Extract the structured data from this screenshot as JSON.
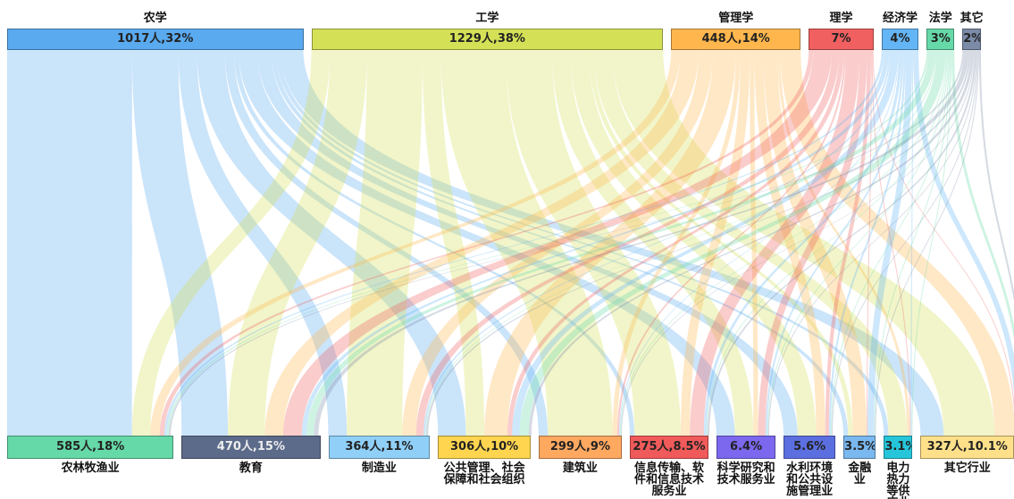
{
  "chart_data": {
    "type": "sankey",
    "sources": [
      {
        "name": "农学",
        "value": 32,
        "value_label": "1017人,32%",
        "color": "#5aaaf0"
      },
      {
        "name": "工学",
        "value": 38,
        "value_label": "1229人,38%",
        "color": "#d4e157"
      },
      {
        "name": "管理学",
        "value": 14,
        "value_label": "448人,14%",
        "color": "#ffb74d"
      },
      {
        "name": "理学",
        "value": 7,
        "value_label": "7%",
        "color": "#f06060"
      },
      {
        "name": "经济学",
        "value": 4,
        "value_label": "4%",
        "color": "#64b5f6"
      },
      {
        "name": "法学",
        "value": 3,
        "value_label": "3%",
        "color": "#66d9a8"
      },
      {
        "name": "其它",
        "value": 2,
        "value_label": "2%",
        "color": "#7b8ba8"
      }
    ],
    "targets": [
      {
        "name": "农林牧渔业",
        "value": 18,
        "value_label": "585人,18%",
        "color": "#66d9a8"
      },
      {
        "name": "教育",
        "value": 15,
        "value_label": "470人,15%",
        "color": "#5c6b8a"
      },
      {
        "name": "制造业",
        "value": 11,
        "value_label": "364人,11%",
        "color": "#90d0f8"
      },
      {
        "name": "公共管理、社会保障和社会组织",
        "value": 10,
        "value_label": "306人,10%",
        "color": "#ffd54f"
      },
      {
        "name": "建筑业",
        "value": 9,
        "value_label": "299人,9%",
        "color": "#ffa860"
      },
      {
        "name": "信息传输、软件和信息技术服务业",
        "value": 8.5,
        "value_label": "275人,8.5%",
        "color": "#f05a5a"
      },
      {
        "name": "科学研究和技术服务业",
        "value": 6.4,
        "value_label": "6.4%",
        "color": "#7b68ee"
      },
      {
        "name": "水利环境和公共设施管理业",
        "value": 5.6,
        "value_label": "5.6%",
        "color": "#5c6fe0"
      },
      {
        "name": "金融业",
        "value": 3.5,
        "value_label": "3.5%",
        "color": "#7ab8f0"
      },
      {
        "name": "电力热力等供应业",
        "value": 3.1,
        "value_label": "3.1%",
        "color": "#26c6da"
      },
      {
        "name": "其它行业",
        "value": 10.1,
        "value_label": "327人,10.1%",
        "color": "#ffe08a"
      }
    ],
    "flows": [
      [
        13.5,
        5,
        2,
        3,
        1,
        0.5,
        2,
        1.5,
        0.5,
        0.5,
        2.5
      ],
      [
        2,
        4,
        6,
        2,
        7,
        5,
        2,
        2,
        0.5,
        2,
        5.5
      ],
      [
        1,
        2,
        1.5,
        2.5,
        0.5,
        1,
        0.5,
        1,
        1.5,
        0.3,
        2.2
      ],
      [
        0.5,
        2,
        0.8,
        0.5,
        0.2,
        1.5,
        0.8,
        0.4,
        0.1,
        0.1,
        0.1
      ],
      [
        0.3,
        0.5,
        0.2,
        0.8,
        0.1,
        0.3,
        0.2,
        0.2,
        0.7,
        0.1,
        0.6
      ],
      [
        0.2,
        0.8,
        0.1,
        1,
        0.1,
        0.1,
        0.1,
        0.1,
        0.1,
        0.1,
        0.3
      ],
      [
        0.2,
        0.5,
        0.2,
        0.3,
        0.1,
        0.2,
        0.1,
        0.1,
        0.1,
        0,
        0.2
      ]
    ]
  }
}
